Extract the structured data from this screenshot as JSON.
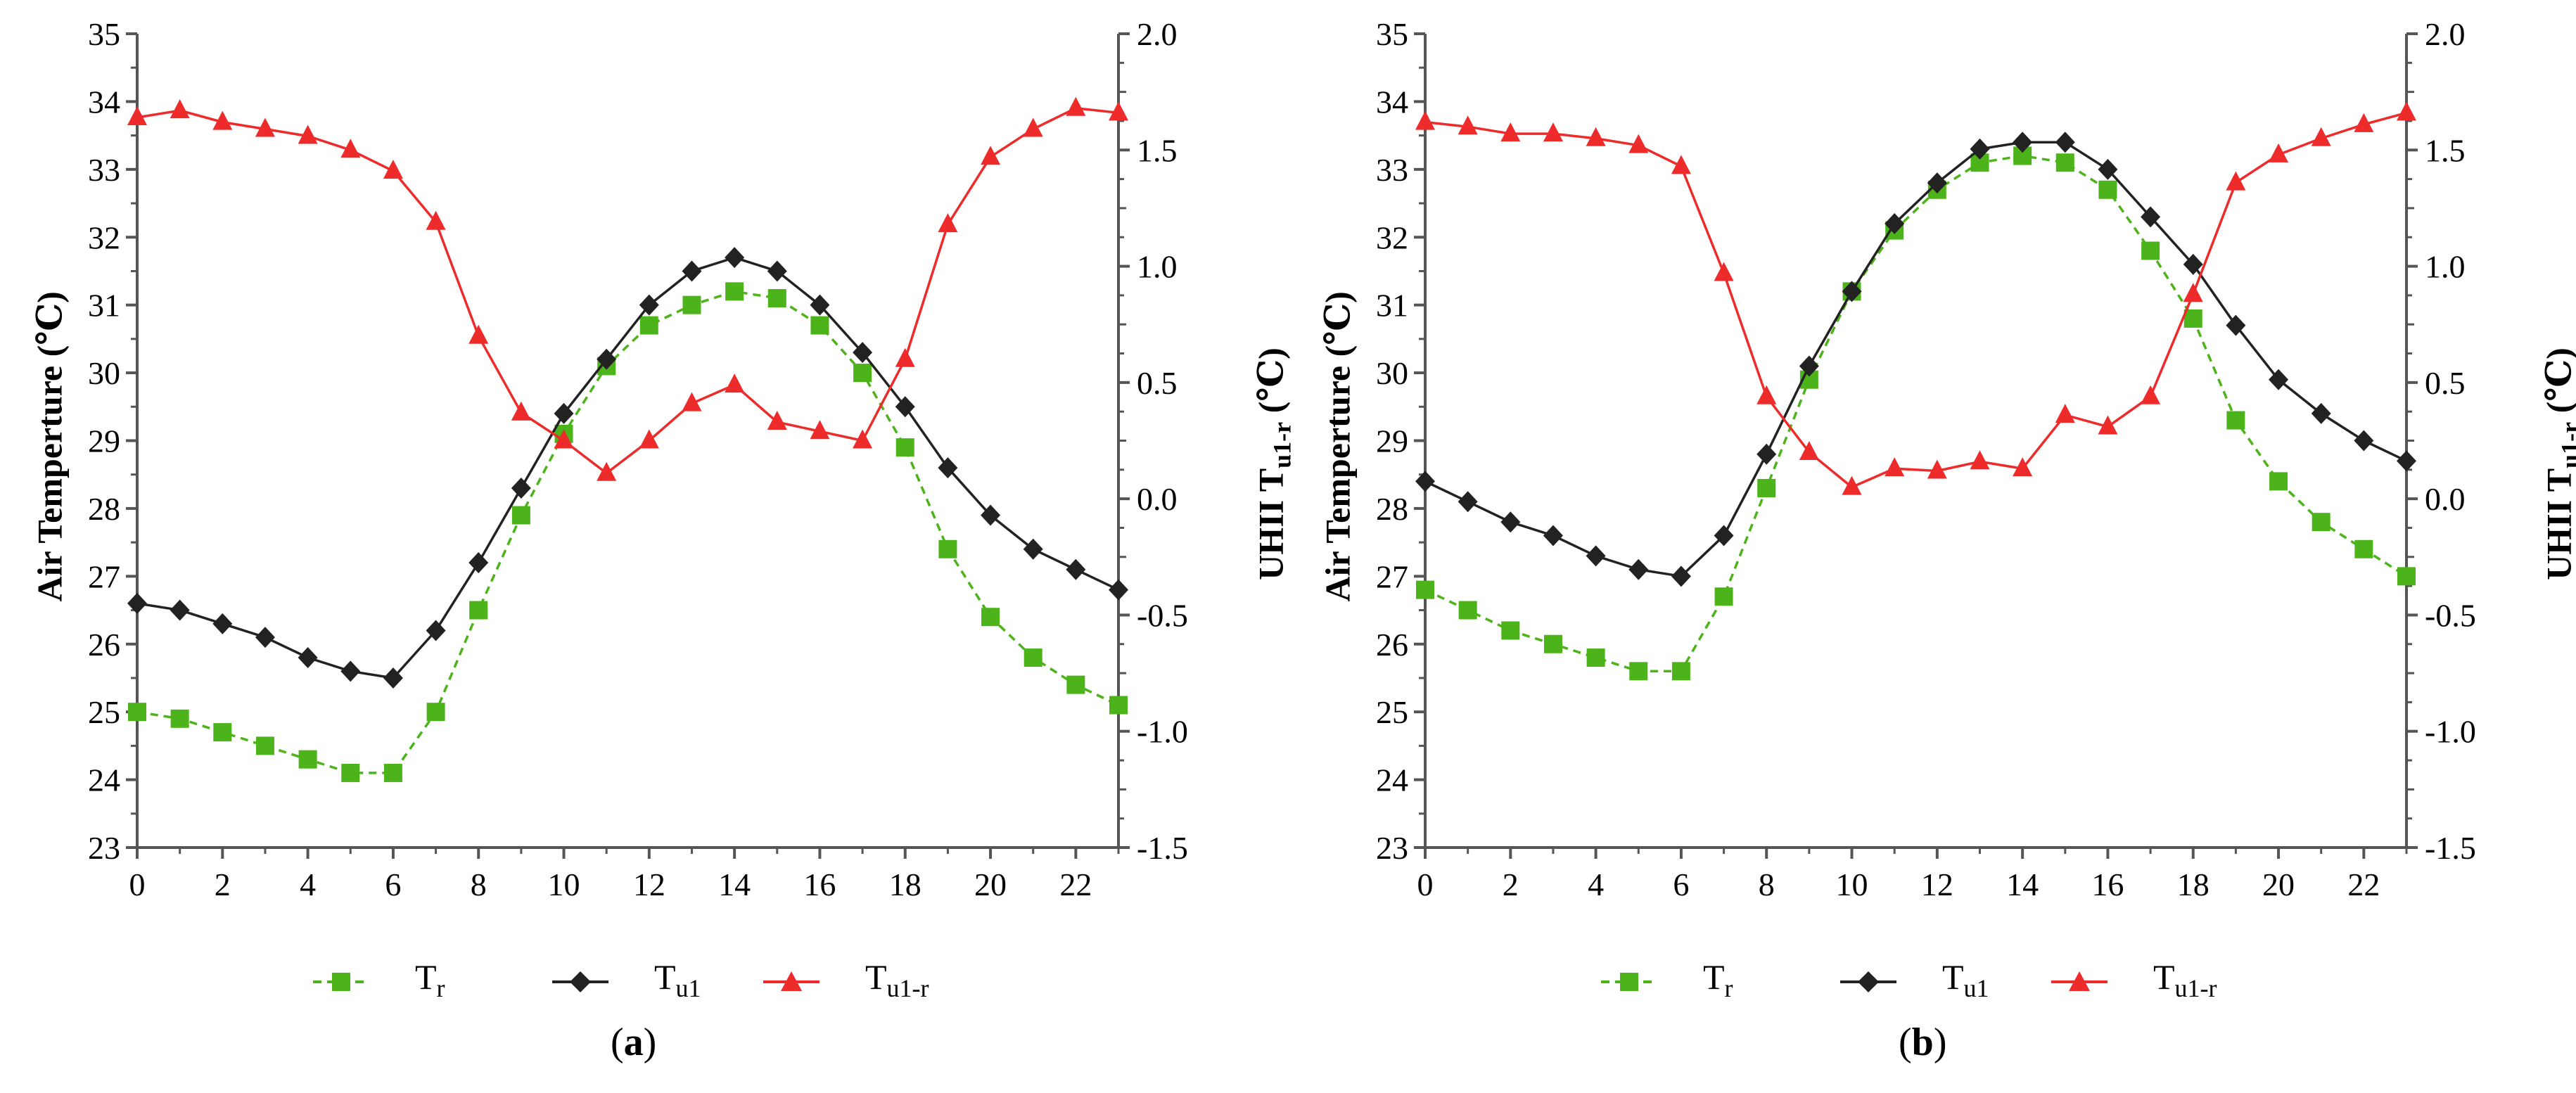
{
  "chart_data": [
    {
      "type": "line",
      "panel_label": "a",
      "xlabel": "",
      "ylabel": "Air Temperture (℃)",
      "y2label_main": "UHII T",
      "y2label_sub": "u1-r",
      "y2label_unit": " (℃)",
      "x": [
        0,
        1,
        2,
        3,
        4,
        5,
        6,
        7,
        8,
        9,
        10,
        11,
        12,
        13,
        14,
        15,
        16,
        17,
        18,
        19,
        20,
        21,
        22,
        23
      ],
      "xticks": [
        0,
        2,
        4,
        6,
        8,
        10,
        12,
        14,
        16,
        18,
        20,
        22
      ],
      "xlim": [
        0,
        23
      ],
      "ylim": [
        23,
        35
      ],
      "yticks": [
        23,
        24,
        25,
        26,
        27,
        28,
        29,
        30,
        31,
        32,
        33,
        34,
        35
      ],
      "y2lim": [
        -1.5,
        2.0
      ],
      "y2ticks": [
        "-1.5",
        "-1.0",
        "-0.5",
        "0.0",
        "0.5",
        "1.0",
        "1.5",
        "2.0"
      ],
      "series": [
        {
          "name": "T",
          "sub": "r",
          "axis": "left",
          "color": "#4db31a",
          "marker": "square",
          "dash": true,
          "values": [
            25.0,
            24.9,
            24.7,
            24.5,
            24.3,
            24.1,
            24.1,
            25.0,
            26.5,
            27.9,
            29.1,
            30.1,
            30.7,
            31.0,
            31.2,
            31.1,
            30.7,
            30.0,
            28.9,
            27.4,
            26.4,
            25.8,
            25.4,
            25.1
          ]
        },
        {
          "name": "T",
          "sub": "u1",
          "axis": "left",
          "color": "#222222",
          "marker": "diamond",
          "dash": false,
          "values": [
            26.6,
            26.5,
            26.3,
            26.1,
            25.8,
            25.6,
            25.5,
            26.2,
            27.2,
            28.3,
            29.4,
            30.2,
            31.0,
            31.5,
            31.7,
            31.5,
            31.0,
            30.3,
            29.5,
            28.6,
            27.9,
            27.4,
            27.1,
            26.8
          ]
        },
        {
          "name": "T",
          "sub": "u1-r",
          "axis": "right",
          "color": "#ee2b2b",
          "marker": "triangle",
          "dash": false,
          "values": [
            1.64,
            1.67,
            1.62,
            1.59,
            1.56,
            1.5,
            1.41,
            1.19,
            0.7,
            0.37,
            0.25,
            0.11,
            0.25,
            0.41,
            0.49,
            0.33,
            0.29,
            0.25,
            0.6,
            1.18,
            1.47,
            1.59,
            1.68,
            1.66
          ]
        }
      ],
      "legend": "bottom"
    },
    {
      "type": "line",
      "panel_label": "b",
      "xlabel": "",
      "ylabel": "Air Temperture (℃)",
      "y2label_main": "UHII T",
      "y2label_sub": "u1-r",
      "y2label_unit": " (℃)",
      "x": [
        0,
        1,
        2,
        3,
        4,
        5,
        6,
        7,
        8,
        9,
        10,
        11,
        12,
        13,
        14,
        15,
        16,
        17,
        18,
        19,
        20,
        21,
        22,
        23
      ],
      "xticks": [
        0,
        2,
        4,
        6,
        8,
        10,
        12,
        14,
        16,
        18,
        20,
        22
      ],
      "xlim": [
        0,
        23
      ],
      "ylim": [
        23,
        35
      ],
      "yticks": [
        23,
        24,
        25,
        26,
        27,
        28,
        29,
        30,
        31,
        32,
        33,
        34,
        35
      ],
      "y2lim": [
        -1.5,
        2.0
      ],
      "y2ticks": [
        "-1.5",
        "-1.0",
        "-0.5",
        "0.0",
        "0.5",
        "1.0",
        "1.5",
        "2.0"
      ],
      "series": [
        {
          "name": "T",
          "sub": "r",
          "axis": "left",
          "color": "#4db31a",
          "marker": "square",
          "dash": true,
          "values": [
            26.8,
            26.5,
            26.2,
            26.0,
            25.8,
            25.6,
            25.6,
            26.7,
            28.3,
            29.9,
            31.2,
            32.1,
            32.7,
            33.1,
            33.2,
            33.1,
            32.7,
            31.8,
            30.8,
            29.3,
            28.4,
            27.8,
            27.4,
            27.0
          ]
        },
        {
          "name": "T",
          "sub": "u1",
          "axis": "left",
          "color": "#222222",
          "marker": "diamond",
          "dash": false,
          "values": [
            28.4,
            28.1,
            27.8,
            27.6,
            27.3,
            27.1,
            27.0,
            27.6,
            28.8,
            30.1,
            31.2,
            32.2,
            32.8,
            33.3,
            33.4,
            33.4,
            33.0,
            32.3,
            31.6,
            30.7,
            29.9,
            29.4,
            29.0,
            28.7
          ]
        },
        {
          "name": "T",
          "sub": "u1-r",
          "axis": "right",
          "color": "#ee2b2b",
          "marker": "triangle",
          "dash": false,
          "values": [
            1.62,
            1.6,
            1.57,
            1.57,
            1.55,
            1.52,
            1.43,
            0.97,
            0.44,
            0.2,
            0.05,
            0.13,
            0.12,
            0.16,
            0.13,
            0.36,
            0.31,
            0.44,
            0.88,
            1.36,
            1.48,
            1.55,
            1.61,
            1.66
          ]
        }
      ],
      "legend": "bottom"
    }
  ]
}
